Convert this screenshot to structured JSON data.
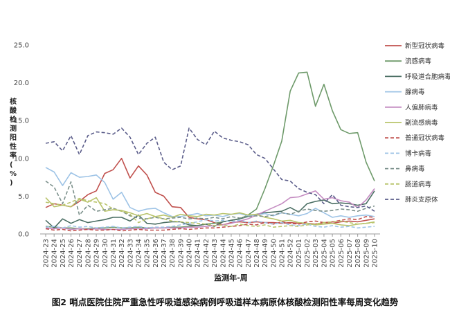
{
  "caption": "图2 哨点医院住院严重急性呼吸道感染病例呼吸道样本病原体核酸检测阳性率每周变化趋势",
  "chart_data": {
    "type": "line",
    "ylabel": "核酸检测阳性率(%)",
    "xlabel": "监测年-周",
    "ylim": [
      0,
      25
    ],
    "yticks": [
      "0.0",
      "5.0",
      "10.0",
      "15.0",
      "20.0",
      "25.0"
    ],
    "grid": false,
    "legend_position": "right",
    "x": [
      "2024-23",
      "2024-24",
      "2024-25",
      "2024-26",
      "2024-27",
      "2024-28",
      "2024-29",
      "2024-30",
      "2024-31",
      "2024-32",
      "2024-33",
      "2024-34",
      "2024-35",
      "2024-36",
      "2024-37",
      "2024-38",
      "2024-39",
      "2024-40",
      "2024-41",
      "2024-42",
      "2024-43",
      "2024-44",
      "2024-45",
      "2024-46",
      "2024-47",
      "2024-48",
      "2024-49",
      "2024-50",
      "2024-51",
      "2024-52",
      "2025-01",
      "2025-02",
      "2025-03",
      "2025-04",
      "2025-05",
      "2025-06",
      "2025-07",
      "2025-08",
      "2025-09",
      "2025-10"
    ],
    "x_tick_labels": [
      "2024-23",
      "2024-24",
      "2024-25",
      "2024-26",
      "2024-27",
      "2024-28",
      "2024-29",
      "2024-30",
      "2024-31",
      "2024-32",
      "2024-33",
      "2024-34",
      "2024-35",
      "2024-36",
      "2024-37",
      "2024-38",
      "2024-39",
      "2024-40",
      "2024-41",
      "2024-42",
      "2024-43",
      "2024-44",
      "2024-45",
      "2024-46",
      "2024-47",
      "2024-48",
      "2024-49",
      "2024-50",
      "2024-51",
      "2024-52",
      "2025-01",
      "2025-02",
      "2025-03",
      "2025-04",
      "2025-05",
      "2025-06",
      "2025-07",
      "2025-08",
      "2025-09",
      "2025-10"
    ],
    "series": [
      {
        "name": "新型冠状病毒",
        "color": "#c0504d",
        "dash": "solid",
        "values": [
          3.5,
          4.0,
          3.8,
          3.6,
          4.3,
          5.2,
          5.7,
          8.0,
          8.5,
          10.0,
          7.4,
          9.0,
          7.8,
          5.5,
          5.0,
          3.6,
          3.5,
          2.2,
          2.0,
          1.9,
          1.5,
          1.2,
          1.5,
          1.6,
          1.5,
          1.6,
          1.5,
          1.5,
          1.4,
          1.5,
          1.4,
          1.4,
          1.3,
          1.5,
          1.4,
          1.6,
          1.7,
          1.6,
          1.8,
          2.0
        ]
      },
      {
        "name": "流感病毒",
        "color": "#6e9a6a",
        "dash": "solid",
        "values": [
          1.0,
          0.9,
          0.8,
          0.8,
          0.7,
          0.7,
          0.8,
          0.8,
          0.9,
          0.8,
          0.8,
          0.9,
          0.8,
          0.8,
          0.8,
          0.9,
          0.9,
          1.0,
          1.1,
          1.3,
          1.4,
          1.6,
          1.8,
          2.0,
          2.5,
          3.3,
          6.0,
          9.0,
          12.3,
          18.9,
          21.3,
          21.4,
          16.9,
          19.8,
          16.3,
          13.8,
          13.3,
          13.4,
          9.5,
          7.0
        ]
      },
      {
        "name": "呼吸道合胞病毒",
        "color": "#4a6e63",
        "dash": "solid",
        "values": [
          1.8,
          0.8,
          2.0,
          1.4,
          1.9,
          1.5,
          1.7,
          1.9,
          2.2,
          2.2,
          1.7,
          2.5,
          1.4,
          1.3,
          1.5,
          1.6,
          1.6,
          1.2,
          1.1,
          1.3,
          1.0,
          1.6,
          1.8,
          2.0,
          2.3,
          2.6,
          2.8,
          2.9,
          3.0,
          3.5,
          2.9,
          4.0,
          4.3,
          4.5,
          4.0,
          4.1,
          4.0,
          3.8,
          4.0,
          5.7
        ]
      },
      {
        "name": "腺病毒",
        "color": "#9dc3e6",
        "dash": "solid",
        "values": [
          8.8,
          8.2,
          6.4,
          8.1,
          7.5,
          7.6,
          7.8,
          6.8,
          4.6,
          5.5,
          3.5,
          3.0,
          3.3,
          3.4,
          2.8,
          2.3,
          2.3,
          2.5,
          2.7,
          2.4,
          2.5,
          2.3,
          2.6,
          2.7,
          2.4,
          2.5,
          2.7,
          2.4,
          2.8,
          2.6,
          2.4,
          2.7,
          3.4,
          2.8,
          2.2,
          2.4,
          2.2,
          2.4,
          2.5,
          2.3
        ]
      },
      {
        "name": "人偏肺病毒",
        "color": "#c48bc1",
        "dash": "solid",
        "values": [
          0.8,
          0.7,
          0.8,
          0.6,
          0.7,
          0.6,
          0.7,
          0.6,
          0.6,
          0.6,
          0.7,
          0.7,
          0.7,
          0.8,
          0.8,
          0.8,
          0.8,
          0.9,
          0.9,
          1.0,
          1.1,
          1.2,
          1.4,
          1.7,
          2.0,
          2.5,
          3.0,
          3.5,
          4.0,
          4.8,
          4.9,
          5.3,
          5.7,
          4.6,
          4.8,
          4.4,
          4.2,
          3.5,
          4.5,
          6.0
        ]
      },
      {
        "name": "副流感病毒",
        "color": "#b9c46c",
        "dash": "solid",
        "values": [
          4.8,
          3.6,
          3.8,
          3.6,
          4.6,
          4.2,
          4.8,
          3.0,
          3.2,
          3.1,
          2.8,
          2.4,
          2.7,
          2.3,
          2.5,
          2.2,
          2.6,
          2.4,
          2.3,
          2.6,
          2.5,
          2.7,
          2.6,
          2.8,
          2.5,
          2.6,
          2.2,
          2.0,
          1.7,
          1.8,
          1.5,
          1.4,
          1.2,
          1.3,
          1.4,
          1.2,
          1.1,
          1.3,
          1.4,
          1.6
        ]
      },
      {
        "name": "普通冠状病毒",
        "color": "#c0504d",
        "dash": "dashed",
        "values": [
          0.7,
          0.5,
          0.6,
          0.4,
          0.5,
          0.6,
          0.5,
          0.5,
          0.6,
          0.4,
          0.5,
          0.6,
          0.5,
          0.5,
          0.5,
          0.6,
          0.7,
          0.6,
          0.7,
          0.8,
          0.8,
          0.9,
          1.0,
          1.1,
          1.3,
          1.2,
          1.5,
          1.3,
          1.6,
          1.4,
          1.3,
          1.6,
          1.7,
          1.5,
          1.6,
          1.8,
          2.0,
          1.9,
          2.3,
          2.2
        ]
      },
      {
        "name": "博卡病毒",
        "color": "#9dc3e6",
        "dash": "dashed",
        "values": [
          0.9,
          1.0,
          0.8,
          1.1,
          0.9,
          1.0,
          0.8,
          0.9,
          1.0,
          0.8,
          0.9,
          1.0,
          0.8,
          0.9,
          0.9,
          1.0,
          1.2,
          1.4,
          1.6,
          1.9,
          1.7,
          1.8,
          1.6,
          1.8,
          1.5,
          1.7,
          1.5,
          1.3,
          1.5,
          1.2,
          1.1,
          1.3,
          1.0,
          0.9,
          1.1,
          0.9,
          1.0,
          0.8,
          0.9,
          1.0
        ]
      },
      {
        "name": "鼻病毒",
        "color": "#7a8f8a",
        "dash": "dashed",
        "values": [
          7.0,
          6.2,
          4.0,
          6.9,
          2.5,
          3.8,
          3.0,
          3.2,
          3.4,
          3.0,
          2.4,
          2.1,
          2.0,
          2.2,
          2.0,
          2.1,
          2.2,
          2.0,
          2.1,
          2.0,
          2.2,
          2.0,
          2.3,
          2.1,
          2.3,
          2.4,
          2.3,
          2.5,
          2.8,
          2.6,
          3.0,
          3.3,
          3.1,
          3.0,
          3.1,
          3.3,
          3.2,
          3.0,
          3.4,
          3.7
        ]
      },
      {
        "name": "肠道病毒",
        "color": "#b9c46c",
        "dash": "dashed",
        "values": [
          4.2,
          4.0,
          3.8,
          4.2,
          4.7,
          4.4,
          4.2,
          4.0,
          3.3,
          3.0,
          2.6,
          1.5,
          2.0,
          2.3,
          2.0,
          1.7,
          1.6,
          1.5,
          1.4,
          1.3,
          1.1,
          1.2,
          1.0,
          1.3,
          1.1,
          1.0,
          1.2,
          0.9,
          1.0,
          1.1,
          1.0,
          1.2,
          1.3,
          1.5,
          1.6,
          1.7,
          1.5,
          1.3,
          1.4,
          1.5
        ]
      },
      {
        "name": "肺炎支原体",
        "color": "#5b5d8a",
        "dash": "dashed",
        "values": [
          12.0,
          12.2,
          11.0,
          13.0,
          10.5,
          13.0,
          13.5,
          13.4,
          13.2,
          14.0,
          12.8,
          10.5,
          12.0,
          12.8,
          9.5,
          8.5,
          9.0,
          14.0,
          12.5,
          11.8,
          13.6,
          12.7,
          12.4,
          12.2,
          11.8,
          10.5,
          10.0,
          8.6,
          7.2,
          7.0,
          6.0,
          5.5,
          5.2,
          4.0,
          5.2,
          3.8,
          3.6,
          3.5,
          3.7,
          3.0
        ]
      }
    ]
  }
}
